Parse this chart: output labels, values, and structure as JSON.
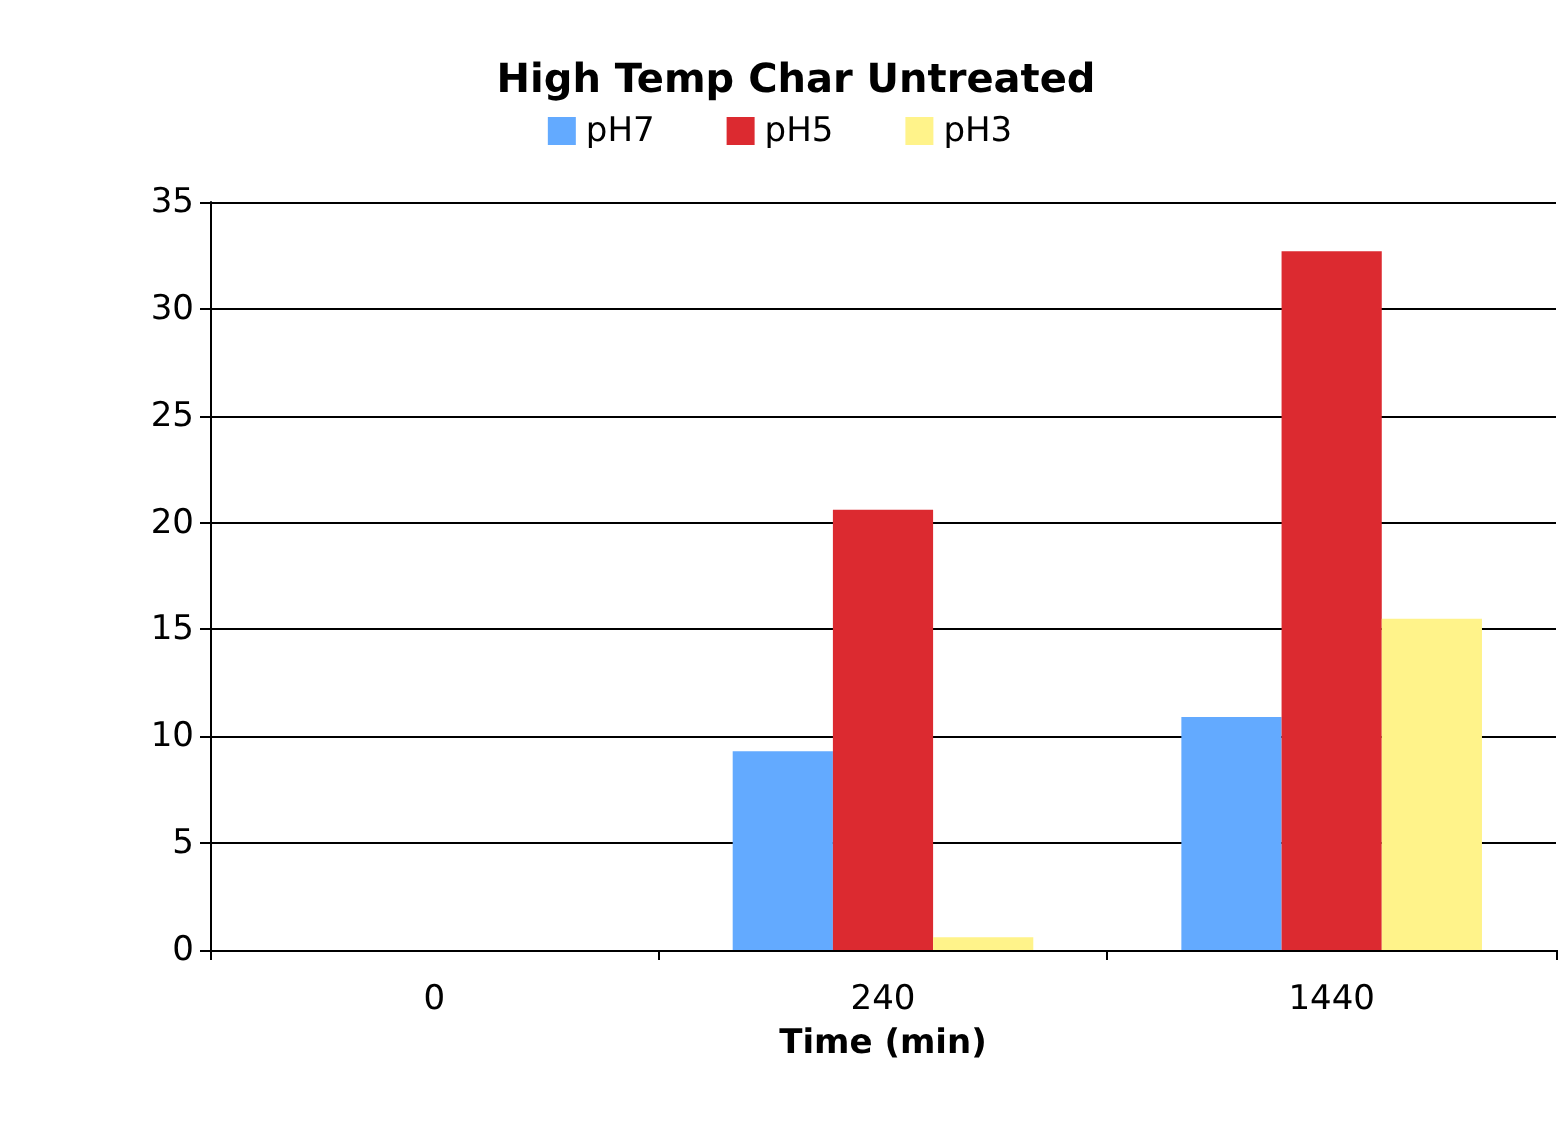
{
  "chart_data": {
    "type": "bar",
    "title": "High Temp Char Untreated",
    "xlabel": "Time (min)",
    "categories": [
      "0",
      "240",
      "1440"
    ],
    "series": [
      {
        "name": "pH7",
        "color": "#63aaff",
        "values": [
          0,
          9.3,
          10.9
        ]
      },
      {
        "name": "pH5",
        "color": "#dc2a30",
        "values": [
          0,
          20.6,
          32.7
        ]
      },
      {
        "name": "pH3",
        "color": "#fff38a",
        "values": [
          0,
          0.6,
          15.5
        ]
      }
    ],
    "ylim": [
      0,
      35
    ],
    "yticks": [
      0,
      5,
      10,
      15,
      20,
      25,
      30,
      35
    ],
    "grid": "y",
    "legend": "top"
  }
}
